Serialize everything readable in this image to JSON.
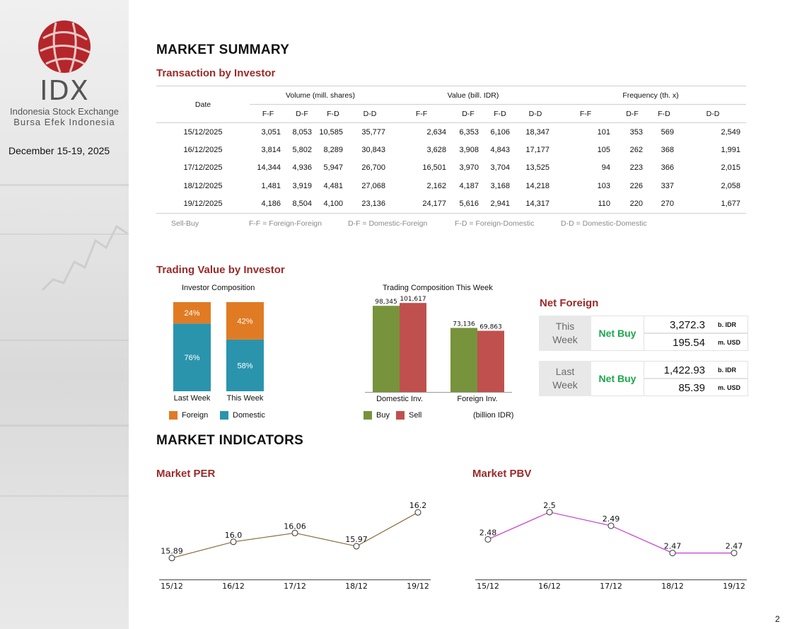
{
  "sidebar": {
    "logo_text": "IDX",
    "logo_sub1": "Indonesia Stock Exchange",
    "logo_sub2": "Bursa Efek Indonesia",
    "period": "December 15-19, 2025"
  },
  "market_summary": {
    "title": "MARKET SUMMARY",
    "txn_title": "Transaction by Investor",
    "table": {
      "date_header": "Date",
      "groups": [
        "Volume (mill. shares)",
        "Value (bill. IDR)",
        "Frequency (th. x)"
      ],
      "sub_headers": [
        "F-F",
        "D-F",
        "F-D",
        "D-D"
      ],
      "rows": [
        {
          "date": "15/12/2025",
          "vol": [
            "3,051",
            "8,053",
            "10,585",
            "35,777"
          ],
          "val": [
            "2,634",
            "6,353",
            "6,106",
            "18,347"
          ],
          "freq": [
            "101",
            "353",
            "569",
            "2,549"
          ]
        },
        {
          "date": "16/12/2025",
          "vol": [
            "3,814",
            "5,802",
            "8,289",
            "30,843"
          ],
          "val": [
            "3,628",
            "3,908",
            "4,843",
            "17,177"
          ],
          "freq": [
            "105",
            "262",
            "368",
            "1,991"
          ]
        },
        {
          "date": "17/12/2025",
          "vol": [
            "14,344",
            "4,936",
            "5,947",
            "26,700"
          ],
          "val": [
            "16,501",
            "3,970",
            "3,704",
            "13,525"
          ],
          "freq": [
            "94",
            "223",
            "366",
            "2,015"
          ]
        },
        {
          "date": "18/12/2025",
          "vol": [
            "1,481",
            "3,919",
            "4,481",
            "27,068"
          ],
          "val": [
            "2,162",
            "4,187",
            "3,168",
            "14,218"
          ],
          "freq": [
            "103",
            "226",
            "337",
            "2,058"
          ]
        },
        {
          "date": "19/12/2025",
          "vol": [
            "4,186",
            "8,504",
            "4,100",
            "23,136"
          ],
          "val": [
            "24,177",
            "5,616",
            "2,941",
            "14,317"
          ],
          "freq": [
            "110",
            "220",
            "270",
            "1,677"
          ]
        }
      ]
    },
    "legend": {
      "sell_buy": "Sell-Buy",
      "ff": "F-F = Foreign-Foreign",
      "df": "D-F = Domestic-Foreign",
      "fd": "F-D = Foreign-Domestic",
      "dd": "D-D = Domestic-Domestic"
    }
  },
  "trading_value": {
    "title": "Trading Value by Investor",
    "net_foreign": {
      "title": "Net Foreign",
      "this_week": {
        "label": "This Week",
        "status": "Net Buy",
        "idr": "3,272.3",
        "idr_unit": "b. IDR",
        "usd": "195.54",
        "usd_unit": "m. USD"
      },
      "last_week": {
        "label": "Last Week",
        "status": "Net Buy",
        "idr": "1,422.93",
        "idr_unit": "b. IDR",
        "usd": "85.39",
        "usd_unit": "m. USD"
      }
    }
  },
  "market_indicators": {
    "title": "MARKET INDICATORS",
    "per_title": "Market PER",
    "pbv_title": "Market PBV"
  },
  "page_number": "2",
  "colors": {
    "foreign": "#e07b24",
    "domestic": "#2b94ad",
    "buy": "#77933c",
    "sell": "#c0504d",
    "per_line": "#8b6a3e",
    "pbv_line": "#c43ccf",
    "accent": "#9a2a2a"
  },
  "chart_data": [
    {
      "type": "bar",
      "title": "Investor Composition",
      "stacked": true,
      "categories": [
        "Last Week",
        "This Week"
      ],
      "series": [
        {
          "name": "Domestic",
          "values": [
            76,
            58
          ],
          "labels": [
            "76%",
            "58%"
          ]
        },
        {
          "name": "Foreign",
          "values": [
            24,
            42
          ],
          "labels": [
            "24%",
            "42%"
          ]
        }
      ],
      "ylim": [
        0,
        100
      ]
    },
    {
      "type": "bar",
      "title": "Trading Composition This Week",
      "categories": [
        "Domestic Inv.",
        "Foreign Inv."
      ],
      "series": [
        {
          "name": "Buy",
          "values": [
            98345,
            73136
          ],
          "labels": [
            "98,345",
            "73,136"
          ]
        },
        {
          "name": "Sell",
          "values": [
            101617,
            69863
          ],
          "labels": [
            "101,617",
            "69,863"
          ]
        }
      ],
      "unit_note": "(billion IDR)",
      "ylim": [
        0,
        105000
      ]
    },
    {
      "type": "line",
      "title": "Market PER",
      "x": [
        "15/12",
        "16/12",
        "17/12",
        "18/12",
        "19/12"
      ],
      "values": [
        15.89,
        16.0,
        16.06,
        15.97,
        16.2
      ],
      "labels": [
        "15.89",
        "16.0",
        "16.06",
        "15.97",
        "16.2"
      ],
      "ylim": [
        15.85,
        16.22
      ]
    },
    {
      "type": "line",
      "title": "Market PBV",
      "x": [
        "15/12",
        "16/12",
        "17/12",
        "18/12",
        "19/12"
      ],
      "values": [
        2.48,
        2.5,
        2.49,
        2.47,
        2.47
      ],
      "labels": [
        "2.48",
        "2.5",
        "2.49",
        "2.47",
        "2.47"
      ],
      "ylim": [
        2.462,
        2.502
      ]
    }
  ]
}
